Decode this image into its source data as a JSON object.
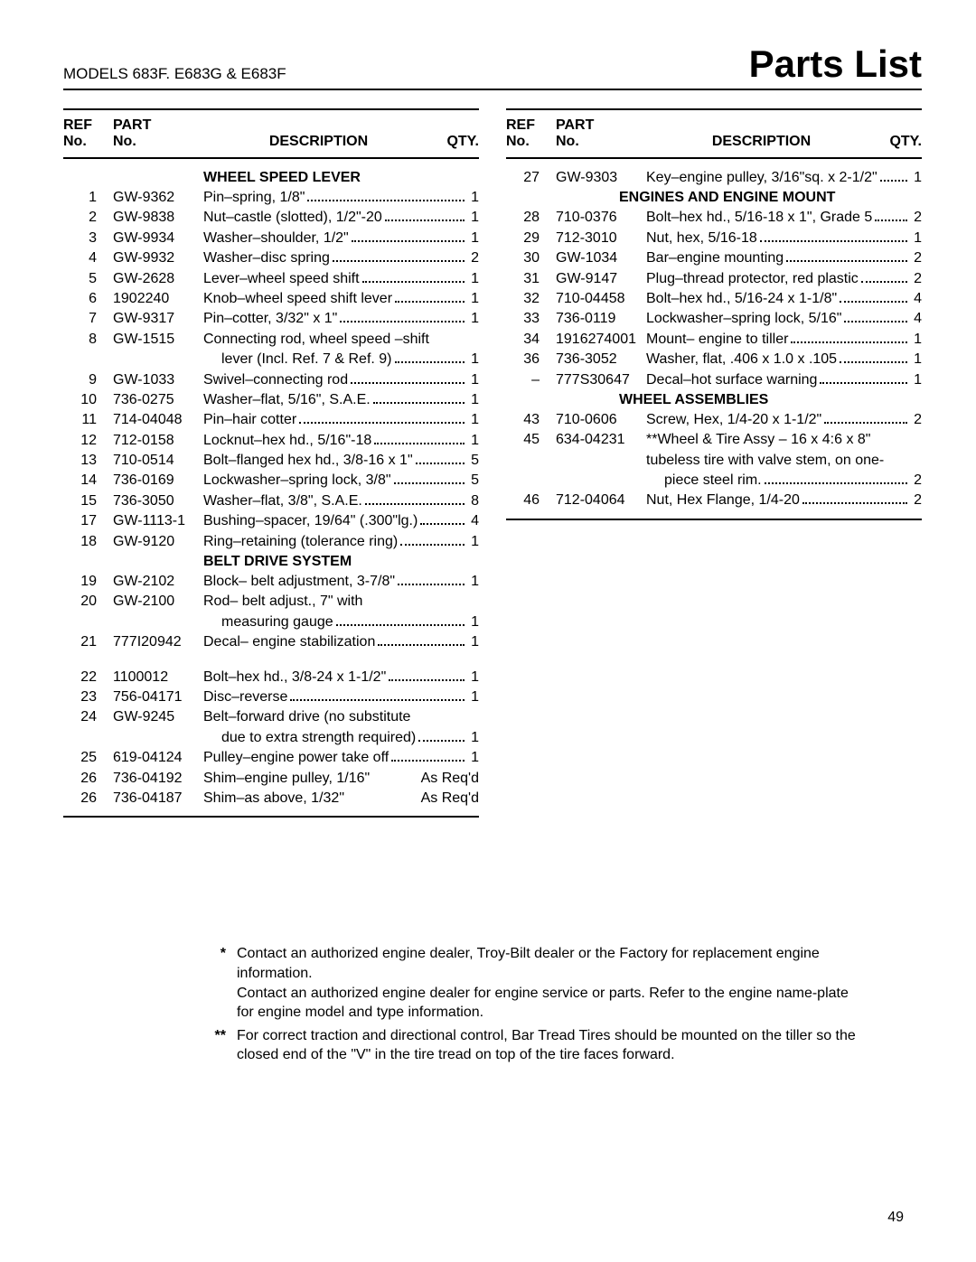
{
  "header": {
    "models": "MODELS  683F. E683G & E683F",
    "title": "Parts List"
  },
  "table_header": {
    "ref1": "REF",
    "ref2": "No.",
    "part1": "PART",
    "part2": "No.",
    "desc": "DESCRIPTION",
    "qty": "QTY."
  },
  "left": {
    "section1": "WHEEL SPEED LEVER",
    "rows1": [
      {
        "ref": "1",
        "part": "GW-9362",
        "desc": "Pin–spring, 1/8\"",
        "qty": "1"
      },
      {
        "ref": "2",
        "part": "GW-9838",
        "desc": "Nut–castle (slotted), 1/2\"-20",
        "qty": "1"
      },
      {
        "ref": "3",
        "part": "GW-9934",
        "desc": "Washer–shoulder, 1/2\"",
        "qty": "1"
      },
      {
        "ref": "4",
        "part": "GW-9932",
        "desc": "Washer–disc spring",
        "qty": "2"
      },
      {
        "ref": "5",
        "part": "GW-2628",
        "desc": "Lever–wheel speed shift",
        "qty": "1"
      },
      {
        "ref": "6",
        "part": "1902240",
        "desc": "Knob–wheel speed shift lever",
        "qty": "1"
      },
      {
        "ref": "7",
        "part": "GW-9317",
        "desc": "Pin–cotter, 3/32\" x 1\"",
        "qty": "1"
      },
      {
        "ref": "8",
        "part": "GW-1515",
        "desc": "Connecting rod, wheel speed –shift",
        "cont": "lever (Incl. Ref. 7 & Ref. 9)",
        "qty": "1"
      },
      {
        "ref": "9",
        "part": "GW-1033",
        "desc": "Swivel–connecting rod",
        "qty": "1"
      },
      {
        "ref": "10",
        "part": "736-0275",
        "desc": "Washer–flat, 5/16\", S.A.E.",
        "qty": "1"
      },
      {
        "ref": "11",
        "part": "714-04048",
        "desc": "Pin–hair cotter",
        "qty": "1"
      },
      {
        "ref": "12",
        "part": "712-0158",
        "desc": "Locknut–hex hd., 5/16\"-18",
        "qty": "1"
      },
      {
        "ref": "13",
        "part": "710-0514",
        "desc": "Bolt–flanged hex hd., 3/8-16 x 1\"",
        "qty": "5"
      },
      {
        "ref": "14",
        "part": "736-0169",
        "desc": "Lockwasher–spring lock, 3/8\"",
        "qty": "5"
      },
      {
        "ref": "15",
        "part": "736-3050",
        "desc": "Washer–flat, 3/8\", S.A.E.",
        "qty": "8"
      },
      {
        "ref": "17",
        "part": "GW-1113-1",
        "desc": "Bushing–spacer, 19/64\" (.300\"lg.)",
        "qty": "4"
      },
      {
        "ref": "18",
        "part": "GW-9120",
        "desc": "Ring–retaining (tolerance ring)",
        "qty": "1"
      }
    ],
    "section2": "BELT DRIVE SYSTEM",
    "rows2": [
      {
        "ref": "19",
        "part": "GW-2102",
        "desc": "Block– belt adjustment, 3-7/8\"",
        "qty": "1"
      },
      {
        "ref": "20",
        "part": "GW-2100",
        "desc": "Rod– belt adjust., 7\" with",
        "cont": "measuring gauge",
        "qty": "1"
      },
      {
        "ref": "21",
        "part": "777I20942",
        "desc": "Decal– engine stabilization",
        "qty": "1"
      }
    ],
    "rows3": [
      {
        "ref": "22",
        "part": "1100012",
        "desc": "Bolt–hex hd., 3/8-24 x 1-1/2\"",
        "qty": "1"
      },
      {
        "ref": "23",
        "part": "756-04171",
        "desc": "Disc–reverse",
        "qty": "1"
      },
      {
        "ref": "24",
        "part": "GW-9245",
        "desc": "Belt–forward drive (no substitute",
        "cont": "due to extra strength required)",
        "qty": "1"
      },
      {
        "ref": "25",
        "part": "619-04124",
        "desc": "Pulley–engine power take off",
        "qty": "1"
      },
      {
        "ref": "26",
        "part": "736-04192",
        "desc": "Shim–engine pulley, 1/16\"",
        "qty": "As Req'd",
        "nodots": true
      },
      {
        "ref": "26",
        "part": "736-04187",
        "desc": "Shim–as above, 1/32\"",
        "qty": "As Req'd",
        "nodots": true
      }
    ]
  },
  "right": {
    "rows1": [
      {
        "ref": "27",
        "part": "GW-9303",
        "desc": "Key–engine pulley, 3/16\"sq. x 2-1/2\"",
        "qty": "1"
      }
    ],
    "section1": "ENGINES AND ENGINE MOUNT",
    "rows2": [
      {
        "ref": "28",
        "part": "710-0376",
        "desc": "Bolt–hex hd., 5/16-18 x 1\", Grade 5",
        "qty": "2"
      },
      {
        "ref": "29",
        "part": "712-3010",
        "desc": "Nut, hex, 5/16-18",
        "qty": "1"
      },
      {
        "ref": "30",
        "part": "GW-1034",
        "desc": "Bar–engine mounting",
        "qty": "2"
      },
      {
        "ref": "31",
        "part": "GW-9147",
        "desc": "Plug–thread protector, red plastic",
        "qty": "2"
      },
      {
        "ref": "32",
        "part": "710-04458",
        "desc": "Bolt–hex hd., 5/16-24 x 1-1/8\"",
        "qty": "4"
      },
      {
        "ref": "33",
        "part": "736-0119",
        "desc": "Lockwasher–spring lock, 5/16\"",
        "qty": "4"
      },
      {
        "ref": "34",
        "part": "1916274001",
        "desc": "Mount– engine to tiller",
        "qty": "1"
      },
      {
        "ref": "36",
        "part": "736-3052",
        "desc": "Washer, flat, .406 x 1.0 x .105",
        "qty": "1"
      },
      {
        "ref": "–",
        "part": "777S30647",
        "desc": "Decal–hot surface warning",
        "qty": "1"
      }
    ],
    "section2": "WHEEL ASSEMBLIES",
    "rows3": [
      {
        "ref": "43",
        "part": "710-0606",
        "desc": "Screw, Hex, 1/4-20 x 1-1/2\"",
        "qty": "2"
      },
      {
        "ref": "45",
        "part": "634-04231",
        "desc": "**Wheel & Tire Assy –  16 x 4:6 x 8\"",
        "cont": "tubeless tire with valve stem, on one-",
        "cont2": "piece steel rim.",
        "qty": "2"
      },
      {
        "ref": "46",
        "part": "712-04064",
        "desc": "Nut, Hex Flange, 1/4-20",
        "qty": "2"
      }
    ]
  },
  "footnotes": [
    {
      "mark": "*",
      "text": "Contact an authorized engine dealer, Troy-Bilt dealer or the Factory for replacement engine information.",
      "text2": "Contact an authorized engine dealer for engine service or parts. Refer to the engine name-plate for engine model and type information."
    },
    {
      "mark": "**",
      "text": "For correct traction and directional control, Bar Tread Tires should be mounted on the tiller so the closed end of the \"V\" in the tire tread on top of the tire faces forward."
    }
  ],
  "page_number": "49"
}
